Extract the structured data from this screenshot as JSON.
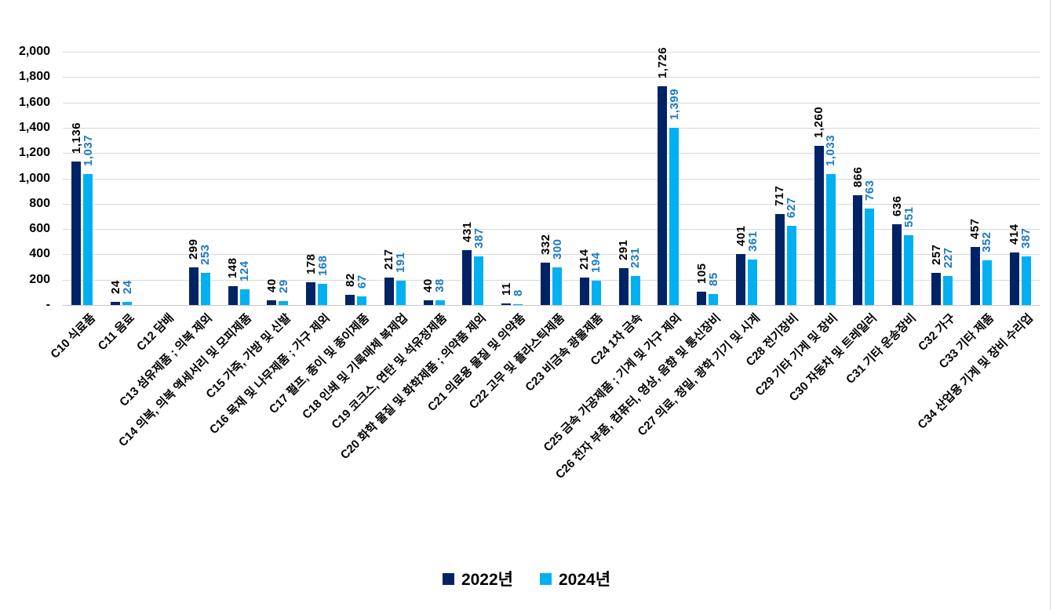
{
  "chart_data": {
    "type": "bar",
    "title": "",
    "categories": [
      "C10 식료품",
      "C11 음료",
      "C12 담배",
      "C13 섬유제품 ; 의복 제외",
      "C14 의복, 의복 액세서리 및 모피제품",
      "C15 가죽, 가방 및 신발",
      "C16 목재 및 나무제품 ; 가구 제외",
      "C17 펄프, 종이 및 종이제품",
      "C18 인쇄 및 기록매체 복제업",
      "C19 코크스, 연탄 및 석유정제품",
      "C20 화학 물질 및 화학제품 ; 의약품 제외",
      "C21 의료용 물질 및 의약품",
      "C22 고무 및 플라스틱제품",
      "C23 비금속 광물제품",
      "C24 1차 금속",
      "C25 금속 가공제품 ; 기계 및 가구 제외",
      "C26 전자 부품, 컴퓨터, 영상, 음향 및 통신장비",
      "C27 의료, 정밀, 광학 기기 및 시계",
      "C28 전기장비",
      "C29 기타 기계 및 장비",
      "C30 자동차 및 트레일러",
      "C31 기타 운송장비",
      "C32 가구",
      "C33 기타 제품",
      "C34 산업용 기계 및 장비 수리업"
    ],
    "series": [
      {
        "name": "2022년",
        "color": "#002366",
        "label_color": "#000000",
        "values": [
          1136,
          24,
          null,
          299,
          148,
          40,
          178,
          82,
          217,
          40,
          431,
          11,
          332,
          214,
          291,
          1726,
          105,
          401,
          717,
          1260,
          866,
          636,
          257,
          457,
          414
        ]
      },
      {
        "name": "2024년",
        "color": "#00B0F0",
        "label_color": "#1B79C2",
        "values": [
          1037,
          24,
          null,
          253,
          124,
          29,
          168,
          67,
          191,
          38,
          387,
          8,
          300,
          194,
          231,
          1399,
          85,
          361,
          627,
          1033,
          763,
          551,
          227,
          352,
          387
        ]
      }
    ],
    "y_axis": {
      "min": 0,
      "max": 2000,
      "step": 200,
      "tick_labels": [
        "2,000",
        "1,800",
        "1,600",
        "1,400",
        "1,200",
        "1,000",
        "800",
        "600",
        "400",
        "200",
        "-"
      ]
    },
    "grid": true,
    "legend_position": "bottom-center",
    "x_label_rotation_deg": 45,
    "data_label_rotation_deg": 90,
    "colors": {
      "gridline": "#D9D9D9",
      "axis_line": "#C9C9C9",
      "right_border": "#D9D9D9",
      "background": "#FFFFFF",
      "tick_text": "#000000"
    }
  }
}
